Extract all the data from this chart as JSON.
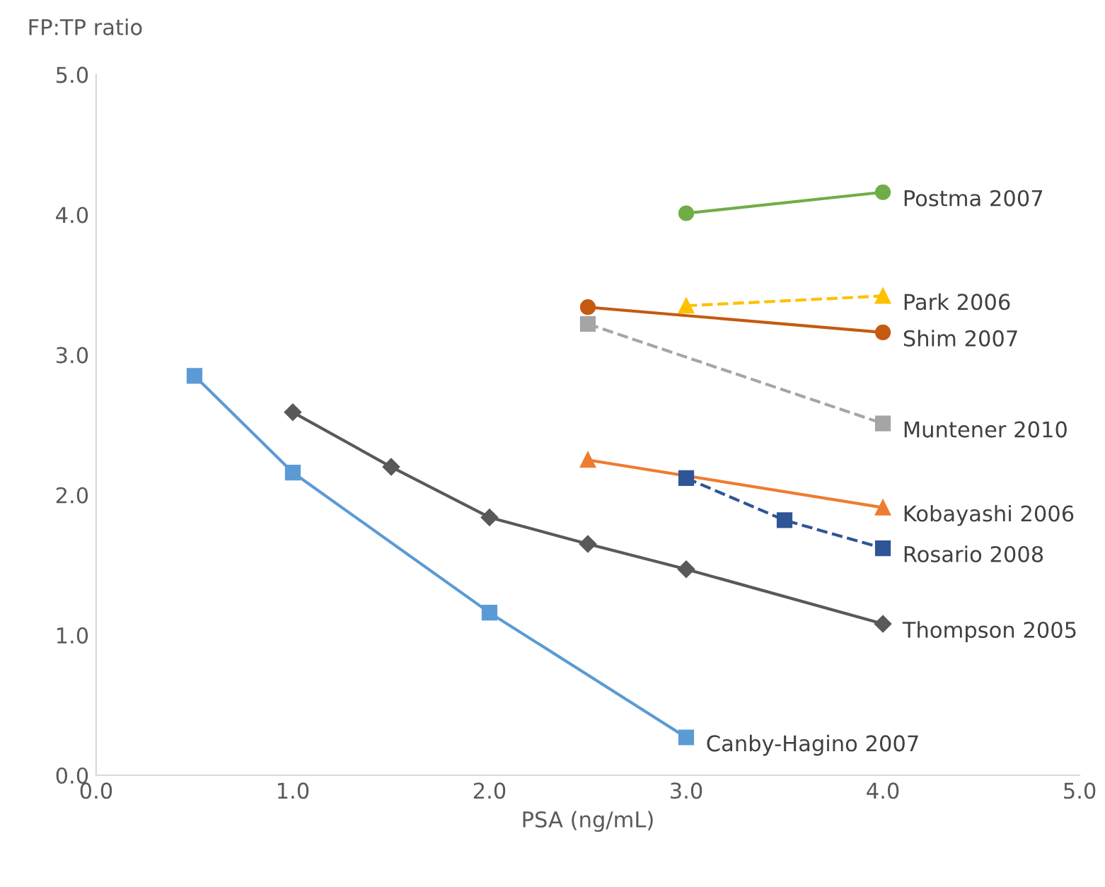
{
  "chart_data": {
    "type": "line",
    "xlabel": "PSA (ng/mL)",
    "ylabel": "FP:TP ratio",
    "xlim": [
      0,
      5
    ],
    "ylim": [
      0,
      5
    ],
    "xticks": [
      {
        "value": 0,
        "label": "0.0"
      },
      {
        "value": 1,
        "label": "1.0"
      },
      {
        "value": 2,
        "label": "2.0"
      },
      {
        "value": 3,
        "label": "3.0"
      },
      {
        "value": 4,
        "label": "4.0"
      },
      {
        "value": 5,
        "label": "5.0"
      }
    ],
    "yticks": [
      {
        "value": 0,
        "label": "0.0"
      },
      {
        "value": 1,
        "label": "1.0"
      },
      {
        "value": 2,
        "label": "2.0"
      },
      {
        "value": 3,
        "label": "3.0"
      },
      {
        "value": 4,
        "label": "4.0"
      },
      {
        "value": 5,
        "label": "5.0"
      }
    ],
    "grid": false,
    "legend": false,
    "series": [
      {
        "name": "Postma 2007",
        "color": "#70ad47",
        "marker": "circle",
        "line_style": "solid",
        "x": [
          3.0,
          4.0
        ],
        "values": [
          4.01,
          4.16
        ]
      },
      {
        "name": "Park 2006",
        "color": "#ffc000",
        "marker": "triangle",
        "line_style": "dashed",
        "x": [
          3.0,
          4.0
        ],
        "values": [
          3.35,
          3.42
        ]
      },
      {
        "name": "Shim 2007",
        "color": "#c55a11",
        "marker": "circle",
        "line_style": "solid",
        "x": [
          2.5,
          4.0
        ],
        "values": [
          3.34,
          3.16
        ]
      },
      {
        "name": "Muntener 2010",
        "color": "#a5a5a5",
        "marker": "square",
        "line_style": "dashed",
        "x": [
          2.5,
          4.0
        ],
        "values": [
          3.22,
          2.51
        ]
      },
      {
        "name": "Kobayashi 2006",
        "color": "#ed7d31",
        "marker": "triangle",
        "line_style": "solid",
        "x": [
          2.5,
          4.0
        ],
        "values": [
          2.25,
          1.91
        ]
      },
      {
        "name": "Rosario 2008",
        "color": "#2f5597",
        "marker": "square",
        "line_style": "dashed",
        "x": [
          3.0,
          3.5,
          4.0
        ],
        "values": [
          2.12,
          1.82,
          1.62
        ]
      },
      {
        "name": "Thompson 2005",
        "color": "#595959",
        "marker": "diamond",
        "line_style": "solid",
        "x": [
          1.0,
          1.5,
          2.0,
          2.5,
          3.0,
          4.0
        ],
        "values": [
          2.59,
          2.2,
          1.84,
          1.65,
          1.47,
          1.08
        ]
      },
      {
        "name": "Canby-Hagino 2007",
        "color": "#5b9bd5",
        "marker": "square",
        "line_style": "solid",
        "x": [
          0.5,
          1.0,
          2.0,
          3.0
        ],
        "values": [
          2.85,
          2.16,
          1.16,
          0.27
        ]
      }
    ]
  }
}
